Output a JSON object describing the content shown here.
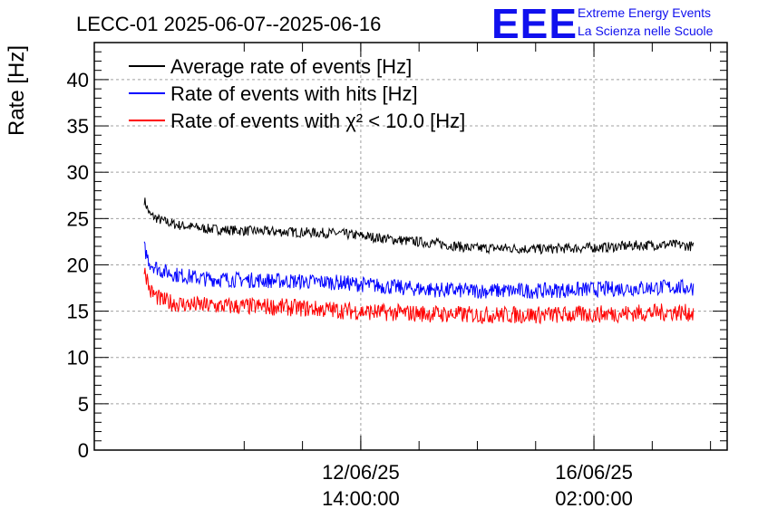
{
  "header": {
    "title": "LECC-01 2025-06-07--2025-06-16",
    "logo_text": "EEE",
    "logo_line1": "Extreme Energy Events",
    "logo_line2": "La Scienza nelle Scuole"
  },
  "chart_data": {
    "type": "line",
    "title": "LECC-01 2025-06-07--2025-06-16",
    "xlabel": "",
    "ylabel": "Rate [Hz]",
    "ylim": [
      0,
      44
    ],
    "yticks": [
      "0",
      "5",
      "10",
      "15",
      "20",
      "25",
      "30",
      "35",
      "40"
    ],
    "xlim": [
      "2025-06-08 14:00",
      "2025-06-18 02:00"
    ],
    "xticks": [
      {
        "date": "12/06/25",
        "time": "14:00:00",
        "x": "2025-06-12 14:00"
      },
      {
        "date": "16/06/25",
        "time": "02:00:00",
        "x": "2025-06-16 02:00"
      }
    ],
    "grid": true,
    "legend": "top-left",
    "series": [
      {
        "name": "Average rate of events [Hz]",
        "color": "#000000",
        "x": [
          "2025-06-09 08:00",
          "2025-06-09 10:00",
          "2025-06-09 14:00",
          "2025-06-09 20:00",
          "2025-06-10 06:00",
          "2025-06-10 18:00",
          "2025-06-11 06:00",
          "2025-06-11 18:00",
          "2025-06-12 06:00",
          "2025-06-12 18:00",
          "2025-06-13 06:00",
          "2025-06-13 18:00",
          "2025-06-14 06:00",
          "2025-06-14 18:00",
          "2025-06-15 06:00",
          "2025-06-15 18:00",
          "2025-06-16 06:00",
          "2025-06-16 18:00",
          "2025-06-17 06:00",
          "2025-06-17 14:00"
        ],
        "values": [
          27.0,
          25.4,
          24.8,
          24.3,
          23.9,
          23.7,
          23.6,
          23.5,
          23.4,
          23.0,
          22.6,
          22.3,
          21.8,
          21.8,
          21.7,
          21.8,
          21.9,
          22.1,
          22.2,
          22.0
        ]
      },
      {
        "name": "Rate of events with hits [Hz]",
        "color": "#0000ff",
        "x": [
          "2025-06-09 08:00",
          "2025-06-09 10:00",
          "2025-06-09 14:00",
          "2025-06-09 20:00",
          "2025-06-10 06:00",
          "2025-06-10 18:00",
          "2025-06-11 06:00",
          "2025-06-11 18:00",
          "2025-06-12 06:00",
          "2025-06-12 18:00",
          "2025-06-13 06:00",
          "2025-06-13 18:00",
          "2025-06-14 06:00",
          "2025-06-14 18:00",
          "2025-06-15 06:00",
          "2025-06-15 18:00",
          "2025-06-16 06:00",
          "2025-06-16 18:00",
          "2025-06-17 06:00",
          "2025-06-17 14:00"
        ],
        "values": [
          21.8,
          20.2,
          19.4,
          18.9,
          18.5,
          18.4,
          18.3,
          18.2,
          18.1,
          17.8,
          17.5,
          17.3,
          17.2,
          17.2,
          17.2,
          17.3,
          17.4,
          17.5,
          17.6,
          17.5
        ]
      },
      {
        "name": "Rate of events with χ² < 10.0 [Hz]",
        "color": "#ff0000",
        "x": [
          "2025-06-09 08:00",
          "2025-06-09 10:00",
          "2025-06-09 14:00",
          "2025-06-09 20:00",
          "2025-06-10 06:00",
          "2025-06-10 18:00",
          "2025-06-11 06:00",
          "2025-06-11 18:00",
          "2025-06-12 06:00",
          "2025-06-12 18:00",
          "2025-06-13 06:00",
          "2025-06-13 18:00",
          "2025-06-14 06:00",
          "2025-06-14 18:00",
          "2025-06-15 06:00",
          "2025-06-15 18:00",
          "2025-06-16 06:00",
          "2025-06-16 18:00",
          "2025-06-17 06:00",
          "2025-06-17 14:00"
        ],
        "values": [
          19.8,
          17.2,
          16.2,
          15.8,
          15.6,
          15.5,
          15.5,
          15.3,
          15.1,
          14.9,
          14.8,
          14.7,
          14.6,
          14.6,
          14.6,
          14.6,
          14.7,
          14.8,
          14.9,
          14.8
        ]
      }
    ]
  }
}
